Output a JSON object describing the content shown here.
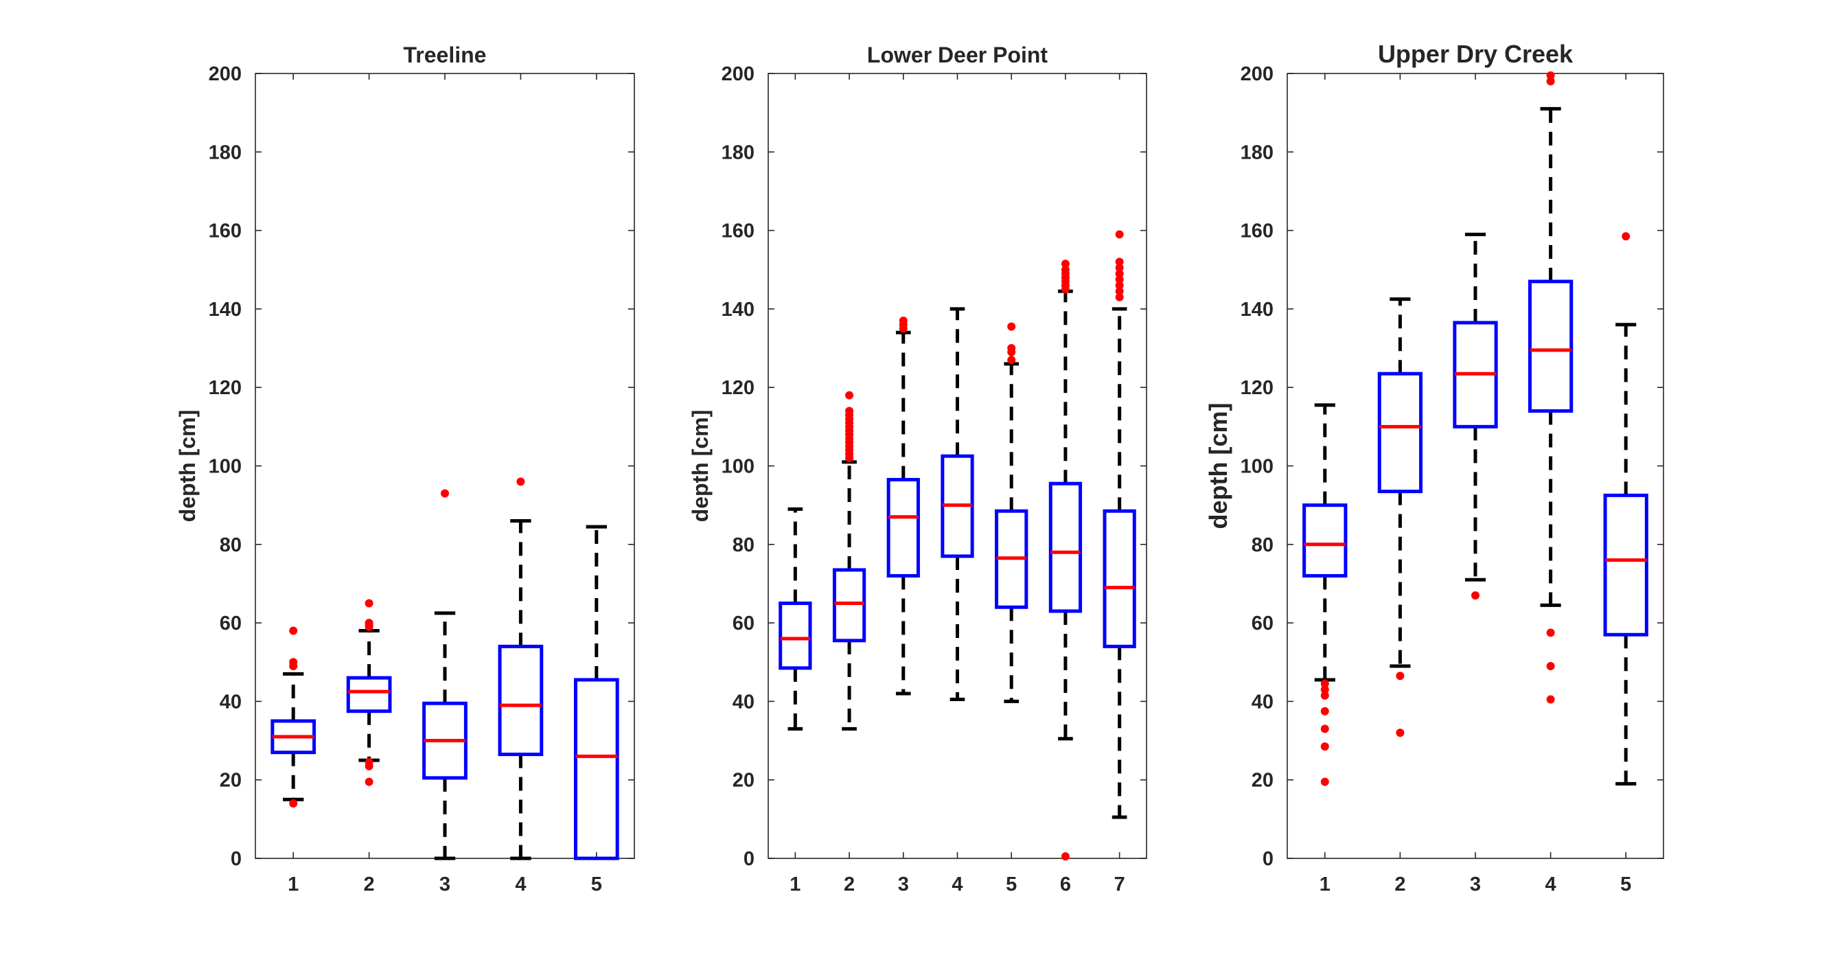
{
  "chart_data": [
    {
      "type": "box",
      "title": "Treeline",
      "ylabel": "depth [cm]",
      "ylim": [
        0,
        200
      ],
      "yticks": [
        0,
        20,
        40,
        60,
        80,
        100,
        120,
        140,
        160,
        180,
        200
      ],
      "categories": [
        "1",
        "2",
        "3",
        "4",
        "5"
      ],
      "boxes": [
        {
          "whisker_low": 15,
          "q1": 27,
          "median": 31,
          "q3": 35,
          "whisker_high": 47,
          "outliers": [
            14,
            49,
            50,
            58
          ]
        },
        {
          "whisker_low": 25,
          "q1": 37.5,
          "median": 42.5,
          "q3": 46,
          "whisker_high": 58,
          "outliers": [
            19.5,
            23.5,
            24.5,
            59,
            59.5,
            60,
            65
          ]
        },
        {
          "whisker_low": 0,
          "q1": 20.5,
          "median": 30,
          "q3": 39.5,
          "whisker_high": 62.5,
          "outliers": [
            93
          ]
        },
        {
          "whisker_low": 0,
          "q1": 26.5,
          "median": 39,
          "q3": 54,
          "whisker_high": 86,
          "outliers": [
            96
          ]
        },
        {
          "whisker_low": 0,
          "q1": 0,
          "median": 26,
          "q3": 45.5,
          "whisker_high": 84.5,
          "outliers": []
        }
      ]
    },
    {
      "type": "box",
      "title": "Lower Deer Point",
      "ylabel": "depth [cm]",
      "ylim": [
        0,
        200
      ],
      "yticks": [
        0,
        20,
        40,
        60,
        80,
        100,
        120,
        140,
        160,
        180,
        200
      ],
      "categories": [
        "1",
        "2",
        "3",
        "4",
        "5",
        "6",
        "7"
      ],
      "boxes": [
        {
          "whisker_low": 33,
          "q1": 48.5,
          "median": 56,
          "q3": 65,
          "whisker_high": 89,
          "outliers": []
        },
        {
          "whisker_low": 33,
          "q1": 55.5,
          "median": 65,
          "q3": 73.5,
          "whisker_high": 101,
          "outliers": [
            102,
            103,
            104,
            105,
            106,
            107,
            108,
            109,
            110,
            111,
            112,
            113,
            114,
            118
          ]
        },
        {
          "whisker_low": 42,
          "q1": 72,
          "median": 87,
          "q3": 96.5,
          "whisker_high": 134,
          "outliers": [
            135,
            136,
            137
          ]
        },
        {
          "whisker_low": 40.5,
          "q1": 77,
          "median": 90,
          "q3": 102.5,
          "whisker_high": 140,
          "outliers": []
        },
        {
          "whisker_low": 40,
          "q1": 64,
          "median": 76.5,
          "q3": 88.5,
          "whisker_high": 126,
          "outliers": [
            127,
            129,
            130,
            135.5
          ]
        },
        {
          "whisker_low": 30.5,
          "q1": 63,
          "median": 78,
          "q3": 95.5,
          "whisker_high": 144.5,
          "outliers": [
            0.5,
            145,
            146,
            147,
            148,
            149,
            150,
            151.5
          ]
        },
        {
          "whisker_low": 10.5,
          "q1": 54,
          "median": 69,
          "q3": 88.5,
          "whisker_high": 140,
          "outliers": [
            143,
            144.5,
            146,
            147.5,
            149,
            150.5,
            152,
            159
          ]
        }
      ]
    },
    {
      "type": "box",
      "title": "Upper Dry Creek",
      "ylabel": "depth [cm]",
      "ylim": [
        0,
        200
      ],
      "yticks": [
        0,
        20,
        40,
        60,
        80,
        100,
        120,
        140,
        160,
        180,
        200
      ],
      "categories": [
        "1",
        "2",
        "3",
        "4",
        "5"
      ],
      "boxes": [
        {
          "whisker_low": 45.5,
          "q1": 72,
          "median": 80,
          "q3": 90,
          "whisker_high": 115.5,
          "outliers": [
            19.5,
            28.5,
            33,
            37.5,
            41.5,
            43,
            44.5
          ]
        },
        {
          "whisker_low": 49,
          "q1": 93.5,
          "median": 110,
          "q3": 123.5,
          "whisker_high": 142.5,
          "outliers": [
            32,
            46.5
          ]
        },
        {
          "whisker_low": 71,
          "q1": 110,
          "median": 123.5,
          "q3": 136.5,
          "whisker_high": 159,
          "outliers": [
            67
          ]
        },
        {
          "whisker_low": 64.5,
          "q1": 114,
          "median": 129.5,
          "q3": 147,
          "whisker_high": 191,
          "outliers": [
            40.5,
            49,
            57.5,
            198,
            199.5
          ]
        },
        {
          "whisker_low": 19,
          "q1": 57,
          "median": 76,
          "q3": 92.5,
          "whisker_high": 136,
          "outliers": [
            158.5
          ]
        }
      ]
    }
  ]
}
